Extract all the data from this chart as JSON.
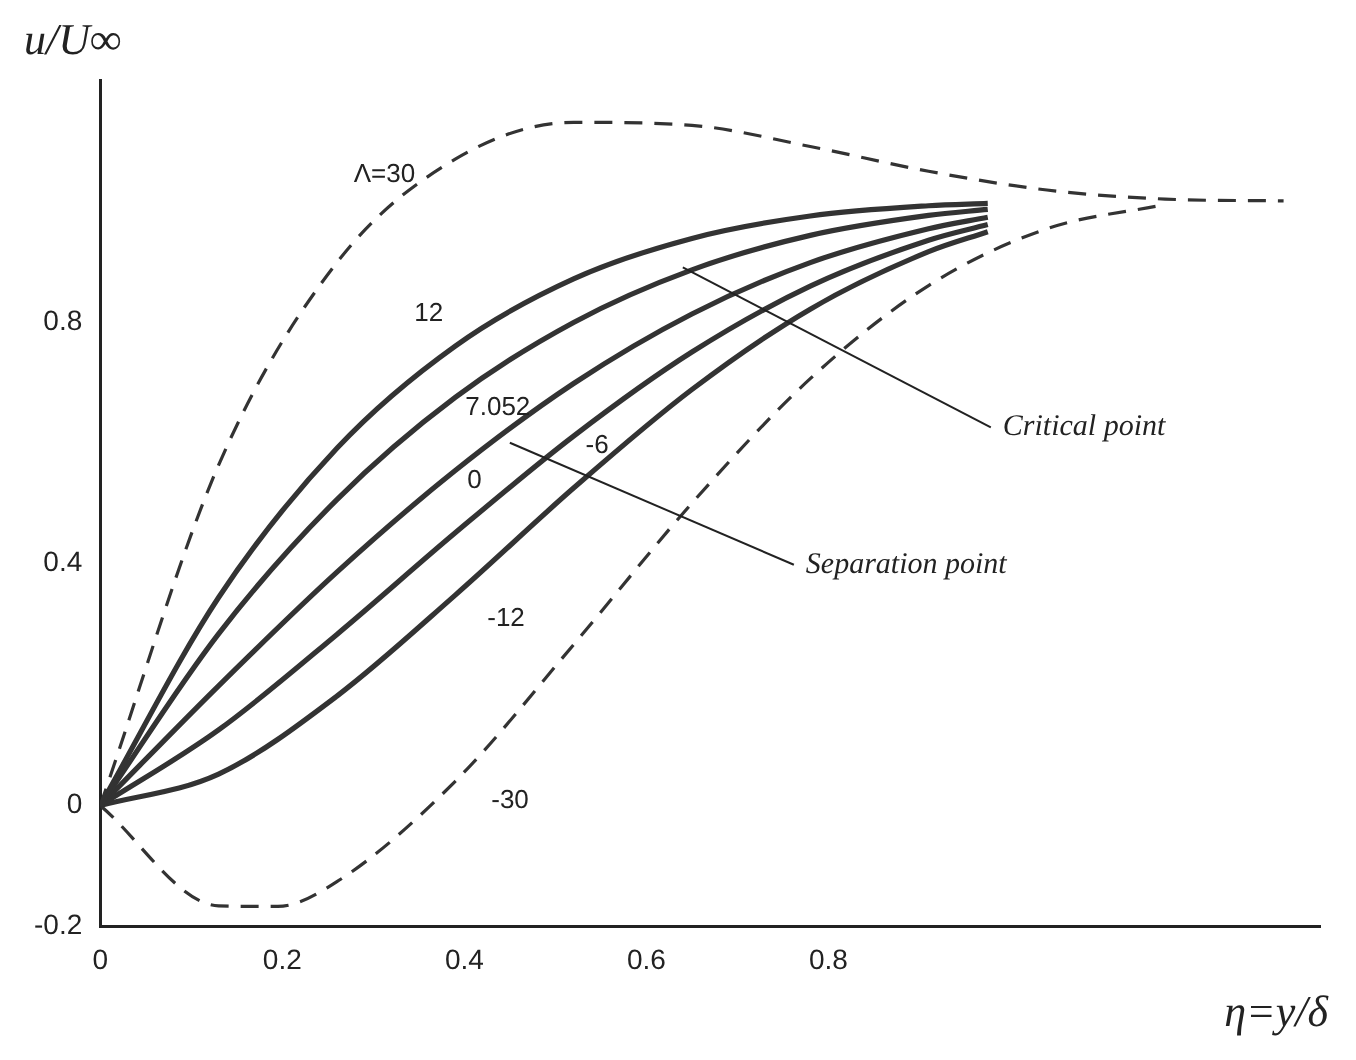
{
  "chart_data": {
    "type": "line",
    "xlabel": "η=y/δ",
    "ylabel": "u/U∞",
    "xlim": [
      0,
      1.34
    ],
    "xticks": [
      0,
      0.2,
      0.4,
      0.6,
      0.8
    ],
    "ylim": [
      -0.2,
      1.2
    ],
    "yticks": [
      -0.2,
      0,
      0.4,
      0.8
    ],
    "grid": false,
    "legend": false,
    "marker": "none",
    "series": [
      {
        "name": "Λ=30",
        "color": "#333333",
        "line_style": "dashed",
        "x": [
          0,
          0.13,
          0.26,
          0.39,
          0.52,
          0.65,
          0.78,
          0.91,
          1.04,
          1.17,
          1.3
        ],
        "values": [
          0,
          0.563,
          0.898,
          1.069,
          1.13,
          1.125,
          1.09,
          1.049,
          1.018,
          1.003,
          1.0
        ]
      },
      {
        "name": "12",
        "color": "#333333",
        "line_style": "solid",
        "x": [
          0,
          0.13,
          0.26,
          0.39,
          0.52,
          0.65,
          0.78,
          0.91,
          0.975
        ],
        "values": [
          0,
          0.344,
          0.591,
          0.76,
          0.871,
          0.938,
          0.975,
          0.992,
          0.996
        ]
      },
      {
        "name": "7.052",
        "color": "#333333",
        "line_style": "solid",
        "x": [
          0,
          0.13,
          0.26,
          0.39,
          0.52,
          0.65,
          0.78,
          0.91,
          0.975
        ],
        "values": [
          0,
          0.284,
          0.506,
          0.675,
          0.799,
          0.886,
          0.943,
          0.976,
          0.986
        ]
      },
      {
        "name": "0",
        "color": "#333333",
        "line_style": "solid",
        "x": [
          0,
          0.13,
          0.26,
          0.39,
          0.52,
          0.65,
          0.78,
          0.91,
          0.975
        ],
        "values": [
          0,
          0.198,
          0.386,
          0.554,
          0.698,
          0.813,
          0.898,
          0.954,
          0.973
        ]
      },
      {
        "name": "-6",
        "color": "#333333",
        "line_style": "solid",
        "x": [
          0,
          0.13,
          0.26,
          0.39,
          0.52,
          0.65,
          0.78,
          0.91,
          0.975
        ],
        "values": [
          0,
          0.125,
          0.283,
          0.451,
          0.611,
          0.75,
          0.859,
          0.935,
          0.961
        ]
      },
      {
        "name": "-12",
        "color": "#333333",
        "line_style": "solid",
        "x": [
          0,
          0.13,
          0.26,
          0.39,
          0.52,
          0.65,
          0.78,
          0.91,
          0.975
        ],
        "values": [
          0,
          0.052,
          0.181,
          0.348,
          0.525,
          0.688,
          0.821,
          0.916,
          0.949
        ]
      },
      {
        "name": "-30",
        "color": "#333333",
        "line_style": "dashed",
        "x": [
          0,
          0.13,
          0.195,
          0.26,
          0.39,
          0.52,
          0.65,
          0.78,
          0.91,
          1.04,
          1.17
        ],
        "values": [
          0,
          -0.166,
          -0.167,
          -0.126,
          0.04,
          0.266,
          0.5,
          0.706,
          0.86,
          0.954,
          0.994
        ]
      }
    ],
    "annotations": [
      {
        "text": "Critical point",
        "x": 0.64,
        "y": 0.89
      },
      {
        "text": "Separation point",
        "x": 0.45,
        "y": 0.6
      }
    ]
  }
}
